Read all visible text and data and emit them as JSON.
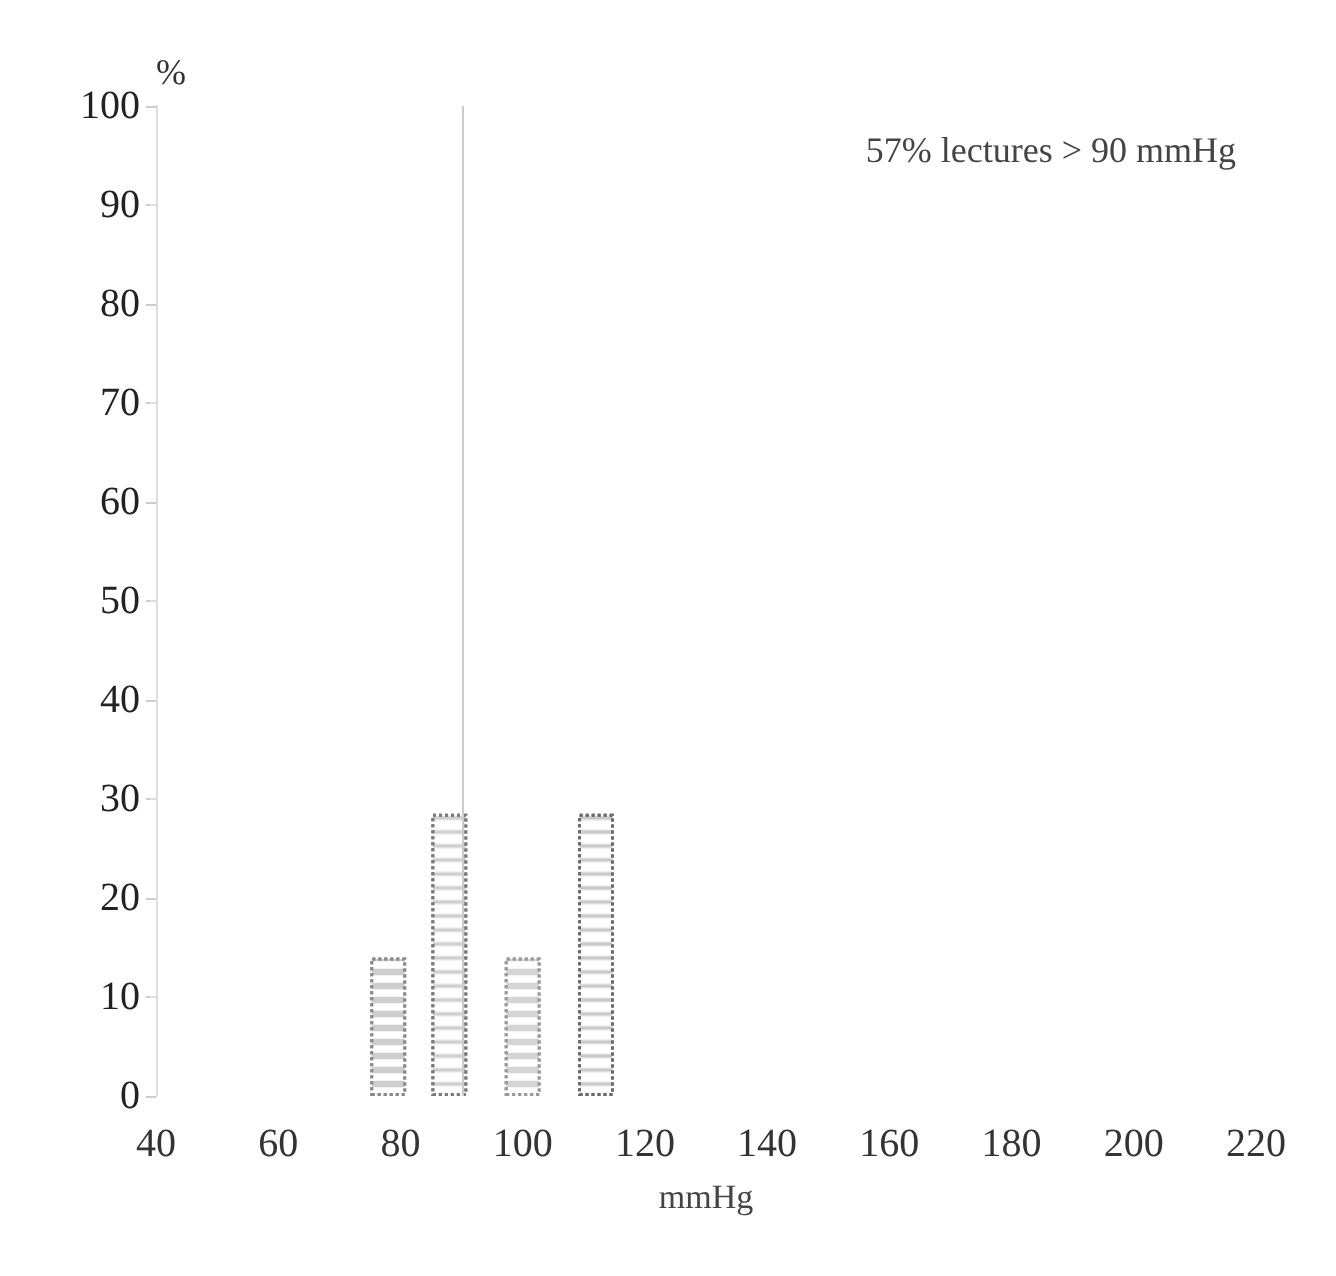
{
  "chart_data": {
    "type": "bar",
    "xlabel": "mmHg",
    "ylabel": "%",
    "x": [
      78,
      88,
      100,
      112
    ],
    "values": [
      14,
      28.5,
      14,
      28.5
    ],
    "colors": [
      "#8a8a8a",
      "#7a7a7a",
      "#9a9a9a",
      "#6a6a6a"
    ],
    "xlim": [
      40,
      220
    ],
    "xticks": [
      40,
      60,
      80,
      100,
      120,
      140,
      160,
      180,
      200,
      220
    ],
    "ylim": [
      0,
      100
    ],
    "yticks": [
      0,
      10,
      20,
      30,
      40,
      50,
      60,
      70,
      80,
      90,
      100
    ],
    "ref_lines": [
      {
        "axis": "x",
        "value": 90,
        "color": "#cccccc"
      }
    ],
    "annotations": [
      "57% lectures > 90 mmHg"
    ]
  }
}
